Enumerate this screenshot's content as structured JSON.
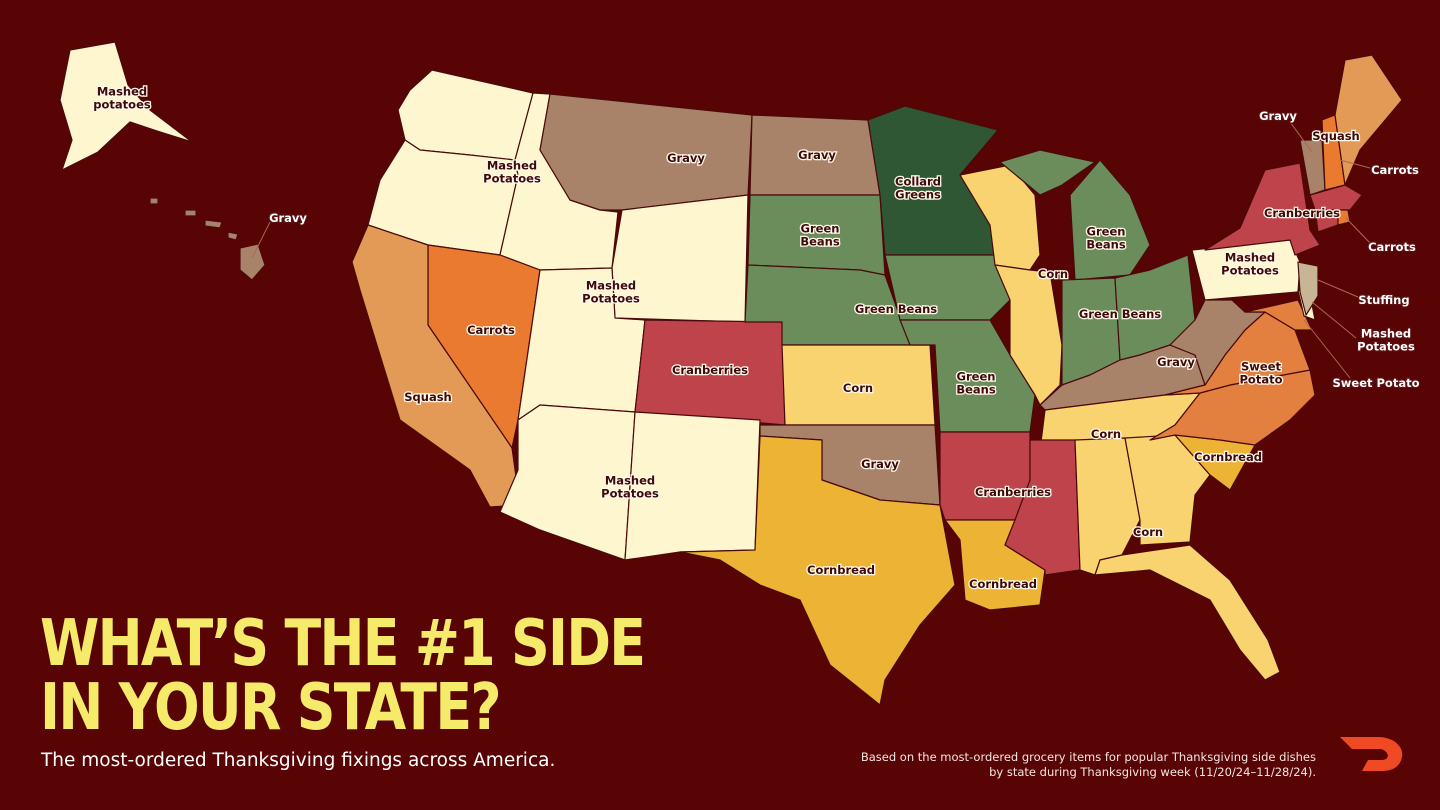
{
  "title_lines": [
    "WHAT’S THE #1 SIDE",
    "IN YOUR STATE?"
  ],
  "subtitle": "The most-ordered Thanksgiving fixings across America.",
  "footnote": "Based on the most-ordered grocery items for popular Thanksgiving side dishes by state during Thanksgiving week (11/20/24–11/28/24).",
  "brand_logo": "doordash-logo",
  "colors": {
    "background": "#580304",
    "title": "#f6ea6a",
    "logo": "#ef4a23",
    "Mashed Potatoes": "#fdf6cf",
    "Gravy": "#a8836a",
    "Green Beans": "#6b8d5c",
    "Collard Greens": "#2f5733",
    "Corn": "#f8d36f",
    "Cornbread": "#ecb334",
    "Cranberries": "#bf434b",
    "Carrots": "#ea7a2f",
    "Squash": "#e39a56",
    "Sweet Potato": "#e4803f",
    "Stuffing": "#c8b596"
  },
  "state_sides": {
    "AK": "Mashed Potatoes",
    "HI": "Gravy",
    "WA": "Mashed Potatoes",
    "OR": "Mashed Potatoes",
    "ID": "Mashed Potatoes",
    "MT": "Gravy",
    "WY": "Mashed Potatoes",
    "NV": "Carrots",
    "CA": "Squash",
    "UT": "Mashed Potatoes",
    "AZ": "Mashed Potatoes",
    "CO": "Cranberries",
    "NM": "Mashed Potatoes",
    "ND": "Gravy",
    "SD": "Green Beans",
    "NE": "Green Beans",
    "KS": "Corn",
    "OK": "Gravy",
    "TX": "Cornbread",
    "MN": "Collard Greens",
    "IA": "Green Beans",
    "MO": "Green Beans",
    "AR": "Cranberries",
    "LA": "Cornbread",
    "WI": "Corn",
    "IL": "Corn",
    "MI": "Green Beans",
    "IN": "Green Beans",
    "OH": "Green Beans",
    "KY": "Gravy",
    "TN": "Corn",
    "MS": "Cranberries",
    "AL": "Corn",
    "GA": "Corn",
    "FL": "Corn",
    "SC": "Cornbread",
    "NC": "Sweet Potato",
    "VA": "Sweet Potato",
    "WV": "Gravy",
    "MD": "Sweet Potato",
    "DE": "Mashed Potatoes",
    "PA": "Mashed Potatoes",
    "NJ": "Stuffing",
    "NY": "Cranberries",
    "CT": "Cranberries",
    "RI": "Carrots",
    "MA": "Cranberries",
    "VT": "Gravy",
    "NH": "Carrots",
    "ME": "Squash"
  },
  "map_labels": [
    [
      "Mashed",
      "potatoes"
    ],
    [
      "Gravy"
    ],
    [
      "Mashed",
      "Potatoes"
    ],
    [
      "Gravy"
    ],
    [
      "Gravy"
    ],
    [
      "Collard",
      "Greens"
    ],
    [
      "Mashed",
      "Potatoes"
    ],
    [
      "Green",
      "Beans"
    ],
    [
      "Green Beans"
    ],
    [
      "Carrots"
    ],
    [
      "Cranberries"
    ],
    [
      "Corn"
    ],
    [
      "Squash"
    ],
    [
      "Corn"
    ],
    [
      "Green",
      "Beans"
    ],
    [
      "Green Beans"
    ],
    [
      "Green",
      "Beans"
    ],
    [
      "Mashed",
      "Potatoes"
    ],
    [
      "Gravy"
    ],
    [
      "Cranberries"
    ],
    [
      "Cornbread"
    ],
    [
      "Cornbread"
    ],
    [
      "Corn"
    ],
    [
      "Corn"
    ],
    [
      "Cornbread"
    ],
    [
      "Sweet",
      "Potato"
    ],
    [
      "Gravy"
    ],
    [
      "Mashed",
      "Potatoes"
    ],
    [
      "Cranberries"
    ],
    [
      "Gravy"
    ],
    [
      "Squash"
    ],
    [
      "Carrots"
    ],
    [
      "Carrots"
    ],
    [
      "Stuffing"
    ],
    [
      "Mashed",
      "Potatoes"
    ],
    [
      "Sweet Potato"
    ]
  ]
}
